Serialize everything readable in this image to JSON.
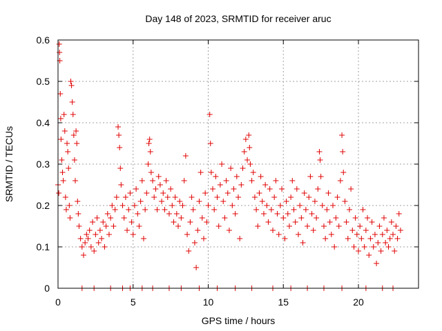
{
  "chart_data": {
    "type": "scatter",
    "title": "Day 148 of 2023, SRMTID for receiver aruc",
    "xlabel": "GPS time / hours",
    "ylabel": "SRMTID / TECUs",
    "xlim": [
      0,
      24
    ],
    "ylim": [
      0,
      0.6
    ],
    "x_ticks": [
      0,
      5,
      10,
      15,
      20
    ],
    "x_tick_labels": [
      "0",
      "5",
      "10",
      "15",
      "20"
    ],
    "y_ticks": [
      0,
      0.1,
      0.2,
      0.3,
      0.4,
      0.5,
      0.6
    ],
    "y_tick_labels": [
      "0",
      "0.1",
      "0.2",
      "0.3",
      "0.4",
      "0.5",
      "0.6"
    ],
    "grid": true,
    "marker": "+",
    "marker_color": "#e00000",
    "series": [
      {
        "name": "SRMTID",
        "points": [
          [
            0.0,
            0.25
          ],
          [
            0.05,
            0.23
          ],
          [
            0.08,
            0.59
          ],
          [
            0.1,
            0.57
          ],
          [
            0.12,
            0.55
          ],
          [
            0.15,
            0.47
          ],
          [
            0.18,
            0.41
          ],
          [
            0.2,
            0.36
          ],
          [
            0.25,
            0.31
          ],
          [
            0.3,
            0.28
          ],
          [
            0.35,
            0.26
          ],
          [
            0.4,
            0.42
          ],
          [
            0.45,
            0.38
          ],
          [
            0.5,
            0.22
          ],
          [
            0.55,
            0.19
          ],
          [
            0.6,
            0.35
          ],
          [
            0.65,
            0.33
          ],
          [
            0.7,
            0.29
          ],
          [
            0.75,
            0.2
          ],
          [
            0.8,
            0.17
          ],
          [
            0.85,
            0.5
          ],
          [
            0.9,
            0.49
          ],
          [
            0.95,
            0.45
          ],
          [
            1.0,
            0.42
          ],
          [
            1.05,
            0.37
          ],
          [
            1.1,
            0.31
          ],
          [
            1.15,
            0.26
          ],
          [
            1.2,
            0.38
          ],
          [
            1.25,
            0.35
          ],
          [
            1.3,
            0.21
          ],
          [
            1.35,
            0.18
          ],
          [
            1.4,
            0.15
          ],
          [
            1.5,
            0.12
          ],
          [
            1.6,
            0.1
          ],
          [
            1.7,
            0.08
          ],
          [
            1.8,
            0.11
          ],
          [
            1.9,
            0.13
          ],
          [
            2.0,
            0.12
          ],
          [
            2.1,
            0.14
          ],
          [
            2.2,
            0.1
          ],
          [
            2.3,
            0.16
          ],
          [
            2.4,
            0.09
          ],
          [
            2.5,
            0.13
          ],
          [
            2.6,
            0.17
          ],
          [
            2.7,
            0.11
          ],
          [
            2.8,
            0.14
          ],
          [
            2.9,
            0.12
          ],
          [
            3.0,
            0.16
          ],
          [
            3.1,
            0.1
          ],
          [
            3.2,
            0.15
          ],
          [
            3.3,
            0.18
          ],
          [
            3.4,
            0.13
          ],
          [
            3.5,
            0.17
          ],
          [
            3.6,
            0.2
          ],
          [
            3.7,
            0.15
          ],
          [
            3.8,
            0.19
          ],
          [
            3.9,
            0.22
          ],
          [
            4.0,
            0.39
          ],
          [
            4.05,
            0.37
          ],
          [
            4.1,
            0.34
          ],
          [
            4.15,
            0.29
          ],
          [
            4.2,
            0.25
          ],
          [
            4.3,
            0.2
          ],
          [
            4.4,
            0.17
          ],
          [
            4.5,
            0.22
          ],
          [
            4.6,
            0.14
          ],
          [
            4.7,
            0.19
          ],
          [
            4.8,
            0.23
          ],
          [
            4.9,
            0.16
          ],
          [
            5.0,
            0.13
          ],
          [
            5.1,
            0.2
          ],
          [
            5.2,
            0.24
          ],
          [
            5.3,
            0.18
          ],
          [
            5.4,
            0.15
          ],
          [
            5.5,
            0.21
          ],
          [
            5.6,
            0.26
          ],
          [
            5.7,
            0.12
          ],
          [
            5.8,
            0.19
          ],
          [
            5.9,
            0.23
          ],
          [
            6.0,
            0.3
          ],
          [
            6.05,
            0.35
          ],
          [
            6.1,
            0.36
          ],
          [
            6.15,
            0.33
          ],
          [
            6.2,
            0.28
          ],
          [
            6.3,
            0.26
          ],
          [
            6.4,
            0.22
          ],
          [
            6.5,
            0.24
          ],
          [
            6.6,
            0.19
          ],
          [
            6.7,
            0.27
          ],
          [
            6.8,
            0.25
          ],
          [
            6.9,
            0.21
          ],
          [
            7.0,
            0.23
          ],
          [
            7.1,
            0.19
          ],
          [
            7.2,
            0.26
          ],
          [
            7.3,
            0.22
          ],
          [
            7.4,
            0.18
          ],
          [
            7.5,
            0.24
          ],
          [
            7.6,
            0.2
          ],
          [
            7.7,
            0.16
          ],
          [
            7.8,
            0.22
          ],
          [
            7.9,
            0.18
          ],
          [
            8.0,
            0.15
          ],
          [
            8.1,
            0.21
          ],
          [
            8.2,
            0.17
          ],
          [
            8.3,
            0.2
          ],
          [
            8.4,
            0.26
          ],
          [
            8.5,
            0.32
          ],
          [
            8.6,
            0.13
          ],
          [
            8.7,
            0.09
          ],
          [
            8.8,
            0.16
          ],
          [
            8.9,
            0.22
          ],
          [
            9.0,
            0.19
          ],
          [
            9.1,
            0.11
          ],
          [
            9.2,
            0.05
          ],
          [
            9.3,
            0.14
          ],
          [
            9.4,
            0.21
          ],
          [
            9.5,
            0.28
          ],
          [
            9.6,
            0.17
          ],
          [
            9.7,
            0.12
          ],
          [
            9.8,
            0.23
          ],
          [
            9.9,
            0.16
          ],
          [
            10.0,
            0.2
          ],
          [
            10.1,
            0.42
          ],
          [
            10.15,
            0.35
          ],
          [
            10.2,
            0.28
          ],
          [
            10.3,
            0.24
          ],
          [
            10.4,
            0.19
          ],
          [
            10.5,
            0.27
          ],
          [
            10.6,
            0.22
          ],
          [
            10.7,
            0.15
          ],
          [
            10.8,
            0.25
          ],
          [
            10.9,
            0.3
          ],
          [
            11.0,
            0.21
          ],
          [
            11.1,
            0.17
          ],
          [
            11.2,
            0.26
          ],
          [
            11.3,
            0.23
          ],
          [
            11.4,
            0.14
          ],
          [
            11.5,
            0.29
          ],
          [
            11.6,
            0.2
          ],
          [
            11.7,
            0.24
          ],
          [
            11.8,
            0.18
          ],
          [
            11.9,
            0.27
          ],
          [
            12.0,
            0.22
          ],
          [
            12.1,
            0.12
          ],
          [
            12.2,
            0.25
          ],
          [
            12.3,
            0.29
          ],
          [
            12.4,
            0.33
          ],
          [
            12.5,
            0.36
          ],
          [
            12.6,
            0.31
          ],
          [
            12.7,
            0.37
          ],
          [
            12.75,
            0.34
          ],
          [
            12.8,
            0.3
          ],
          [
            12.9,
            0.26
          ],
          [
            13.0,
            0.28
          ],
          [
            13.1,
            0.22
          ],
          [
            13.2,
            0.19
          ],
          [
            13.3,
            0.15
          ],
          [
            13.4,
            0.23
          ],
          [
            13.5,
            0.27
          ],
          [
            13.6,
            0.21
          ],
          [
            13.7,
            0.18
          ],
          [
            13.8,
            0.25
          ],
          [
            13.9,
            0.2
          ],
          [
            14.0,
            0.16
          ],
          [
            14.1,
            0.24
          ],
          [
            14.2,
            0.19
          ],
          [
            14.3,
            0.14
          ],
          [
            14.4,
            0.22
          ],
          [
            14.5,
            0.26
          ],
          [
            14.6,
            0.18
          ],
          [
            14.7,
            0.13
          ],
          [
            14.8,
            0.2
          ],
          [
            14.9,
            0.24
          ],
          [
            15.0,
            0.17
          ],
          [
            15.1,
            0.12
          ],
          [
            15.2,
            0.21
          ],
          [
            15.3,
            0.18
          ],
          [
            15.4,
            0.15
          ],
          [
            15.5,
            0.22
          ],
          [
            15.6,
            0.26
          ],
          [
            15.7,
            0.19
          ],
          [
            15.8,
            0.16
          ],
          [
            15.9,
            0.24
          ],
          [
            16.0,
            0.13
          ],
          [
            16.1,
            0.2
          ],
          [
            16.2,
            0.17
          ],
          [
            16.3,
            0.11
          ],
          [
            16.4,
            0.23
          ],
          [
            16.5,
            0.19
          ],
          [
            16.6,
            0.15
          ],
          [
            16.7,
            0.22
          ],
          [
            16.8,
            0.27
          ],
          [
            16.9,
            0.18
          ],
          [
            17.0,
            0.14
          ],
          [
            17.1,
            0.21
          ],
          [
            17.2,
            0.17
          ],
          [
            17.3,
            0.24
          ],
          [
            17.4,
            0.33
          ],
          [
            17.45,
            0.31
          ],
          [
            17.5,
            0.27
          ],
          [
            17.6,
            0.2
          ],
          [
            17.7,
            0.15
          ],
          [
            17.8,
            0.12
          ],
          [
            17.9,
            0.19
          ],
          [
            18.0,
            0.23
          ],
          [
            18.1,
            0.16
          ],
          [
            18.2,
            0.13
          ],
          [
            18.3,
            0.2
          ],
          [
            18.4,
            0.1
          ],
          [
            18.5,
            0.17
          ],
          [
            18.6,
            0.22
          ],
          [
            18.7,
            0.15
          ],
          [
            18.8,
            0.26
          ],
          [
            18.9,
            0.37
          ],
          [
            18.95,
            0.33
          ],
          [
            19.0,
            0.28
          ],
          [
            19.1,
            0.21
          ],
          [
            19.2,
            0.16
          ],
          [
            19.3,
            0.12
          ],
          [
            19.4,
            0.19
          ],
          [
            19.5,
            0.24
          ],
          [
            19.6,
            0.14
          ],
          [
            19.7,
            0.1
          ],
          [
            19.8,
            0.17
          ],
          [
            19.9,
            0.13
          ],
          [
            20.0,
            0.09
          ],
          [
            20.1,
            0.15
          ],
          [
            20.2,
            0.12
          ],
          [
            20.3,
            0.19
          ],
          [
            20.4,
            0.1
          ],
          [
            20.5,
            0.14
          ],
          [
            20.6,
            0.17
          ],
          [
            20.7,
            0.08
          ],
          [
            20.8,
            0.12
          ],
          [
            20.9,
            0.16
          ],
          [
            21.0,
            0.1
          ],
          [
            21.1,
            0.13
          ],
          [
            21.2,
            0.06
          ],
          [
            21.3,
            0.11
          ],
          [
            21.4,
            0.15
          ],
          [
            21.5,
            0.09
          ],
          [
            21.6,
            0.13
          ],
          [
            21.7,
            0.17
          ],
          [
            21.8,
            0.11
          ],
          [
            21.9,
            0.14
          ],
          [
            22.0,
            0.1
          ],
          [
            22.1,
            0.12
          ],
          [
            22.2,
            0.16
          ],
          [
            22.3,
            0.13
          ],
          [
            22.4,
            0.09
          ],
          [
            22.5,
            0.15
          ],
          [
            22.6,
            0.12
          ],
          [
            22.7,
            0.18
          ],
          [
            22.8,
            0.14
          ],
          [
            1.6,
            0.0
          ],
          [
            2.4,
            0.0
          ],
          [
            3.5,
            0.0
          ],
          [
            4.3,
            0.0
          ],
          [
            4.8,
            0.0
          ],
          [
            5.6,
            0.0
          ],
          [
            6.3,
            0.0
          ],
          [
            7.4,
            0.0
          ],
          [
            8.2,
            0.0
          ],
          [
            9.4,
            0.0
          ],
          [
            10.6,
            0.0
          ],
          [
            11.8,
            0.0
          ],
          [
            12.9,
            0.0
          ],
          [
            14.3,
            0.0
          ],
          [
            15.5,
            0.0
          ],
          [
            16.6,
            0.0
          ],
          [
            17.7,
            0.0
          ],
          [
            18.9,
            0.0
          ],
          [
            20.5,
            0.0
          ],
          [
            21.6,
            0.0
          ],
          [
            22.3,
            0.0
          ]
        ]
      }
    ]
  }
}
